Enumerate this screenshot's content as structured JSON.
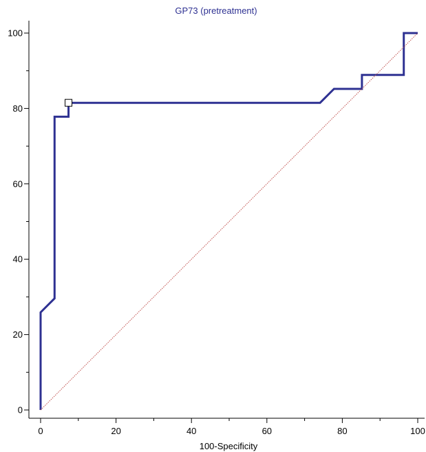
{
  "chart_data": {
    "type": "line",
    "title": "GP73 (pretreatment)",
    "xlabel": "100-Specificity",
    "ylabel": "",
    "xlim": [
      0,
      100
    ],
    "ylim": [
      0,
      100
    ],
    "x_ticks": [
      0,
      20,
      40,
      60,
      80,
      100
    ],
    "y_ticks": [
      0,
      20,
      40,
      60,
      80,
      100
    ],
    "grid": false,
    "series": [
      {
        "role": "roc-curve",
        "color": "#2e3192",
        "x": [
          0,
          0,
          3.7,
          3.7,
          7.4,
          7.4,
          74.1,
          77.8,
          85.2,
          85.2,
          96.3,
          96.3,
          100
        ],
        "y": [
          0,
          25.9,
          29.6,
          77.8,
          77.8,
          81.5,
          81.5,
          85.2,
          85.2,
          88.9,
          88.9,
          100,
          100
        ]
      },
      {
        "role": "reference-diagonal",
        "color": "#c0504d",
        "x": [
          0,
          100
        ],
        "y": [
          0,
          100
        ]
      }
    ],
    "marker": {
      "role": "optimal-cutoff",
      "shape": "square",
      "x": 7.4,
      "y": 81.5
    },
    "colors": {
      "title": "#2e3192",
      "axis": "#000000",
      "curve": "#2e3192",
      "diagonal": "#c0504d"
    }
  }
}
